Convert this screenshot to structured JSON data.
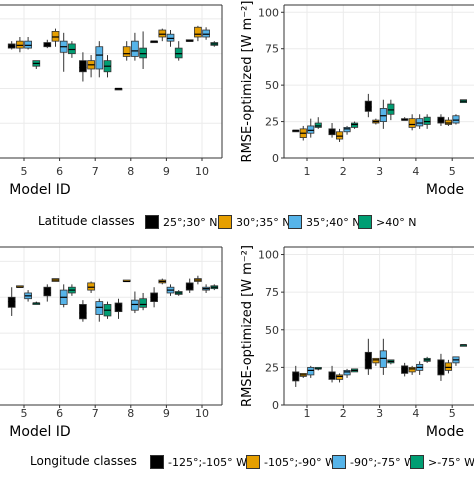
{
  "colors": {
    "class1": "#000000",
    "class2": "#E69F00",
    "class3": "#56B4E9",
    "class4": "#009E73",
    "frame": "#333333",
    "grid": "#ebebeb"
  },
  "chart_data": [
    {
      "type": "boxplot",
      "panel": "top-left",
      "xlabel": "Model ID",
      "ylabel": "",
      "categories": [
        "5",
        "6",
        "7",
        "8",
        "9",
        "10"
      ],
      "grid": true,
      "series": [
        {
          "name": "25°;30° N",
          "boxes": [
            {
              "x": "5",
              "min": 78,
              "q1": 79,
              "median": 80,
              "q3": 82,
              "max": 84
            },
            {
              "x": "6",
              "min": 79,
              "q1": 80,
              "median": 81,
              "q3": 83,
              "max": 85
            },
            {
              "x": "7",
              "min": 55,
              "q1": 62,
              "median": 65,
              "q3": 70,
              "max": 76
            },
            {
              "x": "8",
              "min": 50,
              "q1": 50,
              "median": 50,
              "q3": 50,
              "max": 50
            },
            {
              "x": "9",
              "min": 84,
              "q1": 84,
              "median": 84,
              "q3": 84,
              "max": 84
            },
            {
              "x": "10",
              "min": 84,
              "q1": 84,
              "median": 84,
              "q3": 85,
              "max": 85
            }
          ]
        },
        {
          "name": "30°;35° N",
          "boxes": [
            {
              "x": "5",
              "min": 76,
              "q1": 79,
              "median": 81,
              "q3": 84,
              "max": 87
            },
            {
              "x": "6",
              "min": 80,
              "q1": 84,
              "median": 87,
              "q3": 91,
              "max": 93
            },
            {
              "x": "7",
              "min": 58,
              "q1": 64,
              "median": 67,
              "q3": 70,
              "max": 74
            },
            {
              "x": "8",
              "min": 70,
              "q1": 73,
              "median": 75,
              "q3": 80,
              "max": 84
            },
            {
              "x": "9",
              "min": 84,
              "q1": 87,
              "median": 89,
              "q3": 92,
              "max": 93
            },
            {
              "x": "10",
              "min": 84,
              "q1": 87,
              "median": 89,
              "q3": 94,
              "max": 95
            }
          ]
        },
        {
          "name": "35°;40° N",
          "boxes": [
            {
              "x": "5",
              "min": 78,
              "q1": 79,
              "median": 81,
              "q3": 84,
              "max": 87
            },
            {
              "x": "6",
              "min": 62,
              "q1": 76,
              "median": 80,
              "q3": 84,
              "max": 90
            },
            {
              "x": "7",
              "min": 58,
              "q1": 64,
              "median": 74,
              "q3": 80,
              "max": 84
            },
            {
              "x": "8",
              "min": 70,
              "q1": 73,
              "median": 77,
              "q3": 84,
              "max": 90
            },
            {
              "x": "9",
              "min": 80,
              "q1": 84,
              "median": 86,
              "q3": 89,
              "max": 92
            },
            {
              "x": "10",
              "min": 85,
              "q1": 87,
              "median": 89,
              "q3": 92,
              "max": 94
            }
          ]
        },
        {
          "name": ">40° N",
          "boxes": [
            {
              "x": "5",
              "min": 64,
              "q1": 66,
              "median": 68,
              "q3": 70,
              "max": 70
            },
            {
              "x": "6",
              "min": 72,
              "q1": 75,
              "median": 78,
              "q3": 82,
              "max": 84
            },
            {
              "x": "7",
              "min": 58,
              "q1": 62,
              "median": 66,
              "q3": 70,
              "max": 74
            },
            {
              "x": "8",
              "min": 64,
              "q1": 72,
              "median": 75,
              "q3": 79,
              "max": 91
            },
            {
              "x": "9",
              "min": 70,
              "q1": 72,
              "median": 75,
              "q3": 79,
              "max": 84
            },
            {
              "x": "10",
              "min": 80,
              "q1": 81,
              "median": 82,
              "q3": 83,
              "max": 84
            }
          ]
        }
      ]
    },
    {
      "type": "boxplot",
      "panel": "top-right",
      "xlabel": "Mode",
      "ylabel": "RMSE-optimized [W m⁻²]",
      "categories": [
        "1",
        "2",
        "3",
        "4",
        "5"
      ],
      "yticks": [
        0,
        25,
        50,
        75,
        100
      ],
      "ylim": [
        0,
        105
      ],
      "grid": true,
      "series": [
        {
          "name": "25°;30° N",
          "boxes": [
            {
              "x": "1",
              "min": 19,
              "q1": 19,
              "median": 19,
              "q3": 19,
              "max": 19
            },
            {
              "x": "2",
              "min": 14,
              "q1": 16,
              "median": 18,
              "q3": 20,
              "max": 24
            },
            {
              "x": "3",
              "min": 28,
              "q1": 32,
              "median": 35,
              "q3": 39,
              "max": 44
            },
            {
              "x": "4",
              "min": 26,
              "q1": 26,
              "median": 26,
              "q3": 27,
              "max": 28
            },
            {
              "x": "5",
              "min": 22,
              "q1": 24,
              "median": 26,
              "q3": 28,
              "max": 30
            }
          ]
        },
        {
          "name": "30°;35° N",
          "boxes": [
            {
              "x": "1",
              "min": 12,
              "q1": 14,
              "median": 17,
              "q3": 20,
              "max": 22
            },
            {
              "x": "2",
              "min": 11,
              "q1": 13,
              "median": 15,
              "q3": 18,
              "max": 20
            },
            {
              "x": "3",
              "min": 23,
              "q1": 24,
              "median": 25,
              "q3": 26,
              "max": 27
            },
            {
              "x": "4",
              "min": 19,
              "q1": 21,
              "median": 23,
              "q3": 27,
              "max": 30
            },
            {
              "x": "5",
              "min": 22,
              "q1": 23,
              "median": 24,
              "q3": 26,
              "max": 28
            }
          ]
        },
        {
          "name": "35°;40° N",
          "boxes": [
            {
              "x": "1",
              "min": 14,
              "q1": 17,
              "median": 19,
              "q3": 22,
              "max": 27
            },
            {
              "x": "2",
              "min": 16,
              "q1": 18,
              "median": 20,
              "q3": 21,
              "max": 22
            },
            {
              "x": "3",
              "min": 20,
              "q1": 25,
              "median": 29,
              "q3": 34,
              "max": 40
            },
            {
              "x": "4",
              "min": 20,
              "q1": 22,
              "median": 24,
              "q3": 27,
              "max": 30
            },
            {
              "x": "5",
              "min": 23,
              "q1": 24,
              "median": 26,
              "q3": 29,
              "max": 30
            }
          ]
        },
        {
          "name": ">40° N",
          "boxes": [
            {
              "x": "1",
              "min": 20,
              "q1": 21,
              "median": 22,
              "q3": 24,
              "max": 28
            },
            {
              "x": "2",
              "min": 20,
              "q1": 21,
              "median": 23,
              "q3": 24,
              "max": 25
            },
            {
              "x": "3",
              "min": 26,
              "q1": 30,
              "median": 33,
              "q3": 37,
              "max": 40
            },
            {
              "x": "4",
              "min": 20,
              "q1": 23,
              "median": 25,
              "q3": 28,
              "max": 30
            },
            {
              "x": "5",
              "min": 38,
              "q1": 38,
              "median": 39,
              "q3": 40,
              "max": 40
            }
          ]
        }
      ]
    },
    {
      "type": "boxplot",
      "panel": "bottom-left",
      "xlabel": "Model ID",
      "ylabel": "",
      "categories": [
        "5",
        "6",
        "7",
        "8",
        "9",
        "10"
      ],
      "grid": true,
      "series": [
        {
          "name": "-125°;-105° W",
          "boxes": [
            {
              "x": "5",
              "min": 62,
              "q1": 68,
              "median": 72,
              "q3": 75,
              "max": 82
            },
            {
              "x": "6",
              "min": 72,
              "q1": 76,
              "median": 78,
              "q3": 82,
              "max": 84
            },
            {
              "x": "7",
              "min": 58,
              "q1": 60,
              "median": 64,
              "q3": 70,
              "max": 73
            },
            {
              "x": "8",
              "min": 60,
              "q1": 65,
              "median": 69,
              "q3": 71,
              "max": 74
            },
            {
              "x": "9",
              "min": 68,
              "q1": 72,
              "median": 75,
              "q3": 78,
              "max": 82
            },
            {
              "x": "10",
              "min": 78,
              "q1": 80,
              "median": 82,
              "q3": 85,
              "max": 88
            }
          ]
        },
        {
          "name": "-105°;-90° W",
          "boxes": [
            {
              "x": "5",
              "min": 82,
              "q1": 82,
              "median": 82,
              "q3": 83,
              "max": 83
            },
            {
              "x": "6",
              "min": 86,
              "q1": 86,
              "median": 87,
              "q3": 88,
              "max": 88
            },
            {
              "x": "7",
              "min": 78,
              "q1": 80,
              "median": 82,
              "q3": 85,
              "max": 86
            },
            {
              "x": "8",
              "min": 86,
              "q1": 86,
              "median": 86,
              "q3": 87,
              "max": 87
            },
            {
              "x": "9",
              "min": 84,
              "q1": 85,
              "median": 86,
              "q3": 87,
              "max": 88
            },
            {
              "x": "10",
              "min": 84,
              "q1": 86,
              "median": 87,
              "q3": 88,
              "max": 90
            }
          ]
        },
        {
          "name": "-90°;-75° W",
          "boxes": [
            {
              "x": "5",
              "min": 72,
              "q1": 74,
              "median": 76,
              "q3": 78,
              "max": 80
            },
            {
              "x": "6",
              "min": 68,
              "q1": 70,
              "median": 75,
              "q3": 80,
              "max": 84
            },
            {
              "x": "7",
              "min": 58,
              "q1": 63,
              "median": 68,
              "q3": 72,
              "max": 74
            },
            {
              "x": "8",
              "min": 64,
              "q1": 66,
              "median": 70,
              "q3": 73,
              "max": 79
            },
            {
              "x": "9",
              "min": 76,
              "q1": 78,
              "median": 80,
              "q3": 82,
              "max": 84
            },
            {
              "x": "10",
              "min": 78,
              "q1": 80,
              "median": 81,
              "q3": 82,
              "max": 84
            }
          ]
        },
        {
          "name": ">-75° W",
          "boxes": [
            {
              "x": "5",
              "min": 70,
              "q1": 70,
              "median": 71,
              "q3": 71,
              "max": 72
            },
            {
              "x": "6",
              "min": 76,
              "q1": 78,
              "median": 80,
              "q3": 82,
              "max": 84
            },
            {
              "x": "7",
              "min": 60,
              "q1": 62,
              "median": 66,
              "q3": 70,
              "max": 72
            },
            {
              "x": "8",
              "min": 66,
              "q1": 68,
              "median": 70,
              "q3": 74,
              "max": 78
            },
            {
              "x": "9",
              "min": 76,
              "q1": 77,
              "median": 78,
              "q3": 79,
              "max": 80
            },
            {
              "x": "10",
              "min": 80,
              "q1": 81,
              "median": 82,
              "q3": 83,
              "max": 84
            }
          ]
        }
      ]
    },
    {
      "type": "boxplot",
      "panel": "bottom-right",
      "xlabel": "Mode",
      "ylabel": "RMSE-optimized [W m⁻²]",
      "categories": [
        "1",
        "2",
        "3",
        "4",
        "5"
      ],
      "yticks": [
        0,
        25,
        50,
        75,
        100
      ],
      "ylim": [
        0,
        105
      ],
      "grid": true,
      "series": [
        {
          "name": "-125°;-105° W",
          "boxes": [
            {
              "x": "1",
              "min": 12,
              "q1": 16,
              "median": 20,
              "q3": 22,
              "max": 26
            },
            {
              "x": "2",
              "min": 15,
              "q1": 17,
              "median": 19,
              "q3": 22,
              "max": 26
            },
            {
              "x": "3",
              "min": 20,
              "q1": 24,
              "median": 30,
              "q3": 35,
              "max": 44
            },
            {
              "x": "4",
              "min": 19,
              "q1": 21,
              "median": 24,
              "q3": 26,
              "max": 28
            },
            {
              "x": "5",
              "min": 16,
              "q1": 20,
              "median": 26,
              "q3": 30,
              "max": 34
            }
          ]
        },
        {
          "name": "-105°;-90° W",
          "boxes": [
            {
              "x": "1",
              "min": 18,
              "q1": 19,
              "median": 20,
              "q3": 21,
              "max": 21
            },
            {
              "x": "2",
              "min": 15,
              "q1": 17,
              "median": 19,
              "q3": 20,
              "max": 21
            },
            {
              "x": "3",
              "min": 26,
              "q1": 28,
              "median": 30,
              "q3": 31,
              "max": 31
            },
            {
              "x": "4",
              "min": 20,
              "q1": 22,
              "median": 24,
              "q3": 25,
              "max": 26
            },
            {
              "x": "5",
              "min": 21,
              "q1": 23,
              "median": 25,
              "q3": 28,
              "max": 30
            }
          ]
        },
        {
          "name": "-90°;-75° W",
          "boxes": [
            {
              "x": "1",
              "min": 18,
              "q1": 20,
              "median": 23,
              "q3": 25,
              "max": 26
            },
            {
              "x": "2",
              "min": 18,
              "q1": 20,
              "median": 22,
              "q3": 23,
              "max": 24
            },
            {
              "x": "3",
              "min": 20,
              "q1": 25,
              "median": 31,
              "q3": 36,
              "max": 44
            },
            {
              "x": "4",
              "min": 20,
              "q1": 23,
              "median": 25,
              "q3": 27,
              "max": 29
            },
            {
              "x": "5",
              "min": 26,
              "q1": 28,
              "median": 30,
              "q3": 32,
              "max": 32
            }
          ]
        },
        {
          "name": ">-75° W",
          "boxes": [
            {
              "x": "1",
              "min": 23,
              "q1": 24,
              "median": 24,
              "q3": 25,
              "max": 25
            },
            {
              "x": "2",
              "min": 22,
              "q1": 22,
              "median": 23,
              "q3": 24,
              "max": 24
            },
            {
              "x": "3",
              "min": 27,
              "q1": 28,
              "median": 29,
              "q3": 30,
              "max": 30
            },
            {
              "x": "4",
              "min": 28,
              "q1": 29,
              "median": 30,
              "q3": 31,
              "max": 32
            },
            {
              "x": "5",
              "min": 40,
              "q1": 40,
              "median": 40,
              "q3": 40,
              "max": 40
            }
          ]
        }
      ]
    }
  ],
  "legends": [
    {
      "title": "Latitude  classes",
      "items": [
        "25°;30° N",
        "30°;35° N",
        "35°;40° N",
        ">40° N"
      ]
    },
    {
      "title": "Longitude  classes",
      "items": [
        "-125°;-105° W",
        "-105°;-90° W",
        "-90°;-75° W",
        ">-75° W"
      ]
    }
  ]
}
